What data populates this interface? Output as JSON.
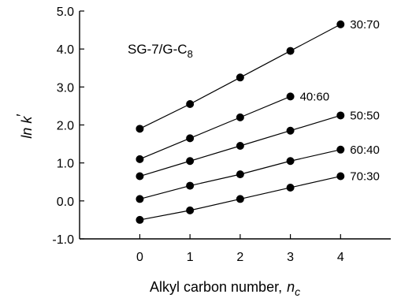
{
  "chart_data": {
    "type": "line",
    "annotation": "SG-7/G-C",
    "annotation_subscript": "8",
    "xlabel": "Alkyl carbon number,",
    "xlabel_var": "n",
    "xlabel_sub": "c",
    "ylabel_main": "ln k",
    "ylabel_prime": "′",
    "x": [
      0,
      1,
      2,
      3,
      4
    ],
    "xlim": [
      -1.2,
      5.0
    ],
    "ylim": [
      -1.0,
      5.0
    ],
    "xticks": [
      "0",
      "1",
      "2",
      "3",
      "4"
    ],
    "yticks": [
      "-1.0",
      "0.0",
      "1.0",
      "2.0",
      "3.0",
      "4.0",
      "5.0"
    ],
    "series": [
      {
        "name": "30:70",
        "values": [
          1.9,
          2.55,
          3.25,
          3.95,
          4.65
        ]
      },
      {
        "name": "40:60",
        "values": [
          1.1,
          1.65,
          2.2,
          2.75,
          null
        ]
      },
      {
        "name": "50:50",
        "values": [
          0.65,
          1.05,
          1.45,
          1.85,
          2.25
        ]
      },
      {
        "name": "60:40",
        "values": [
          0.05,
          0.4,
          0.7,
          1.05,
          1.35
        ]
      },
      {
        "name": "70:30",
        "values": [
          -0.5,
          -0.25,
          0.05,
          0.35,
          0.65
        ]
      }
    ]
  }
}
